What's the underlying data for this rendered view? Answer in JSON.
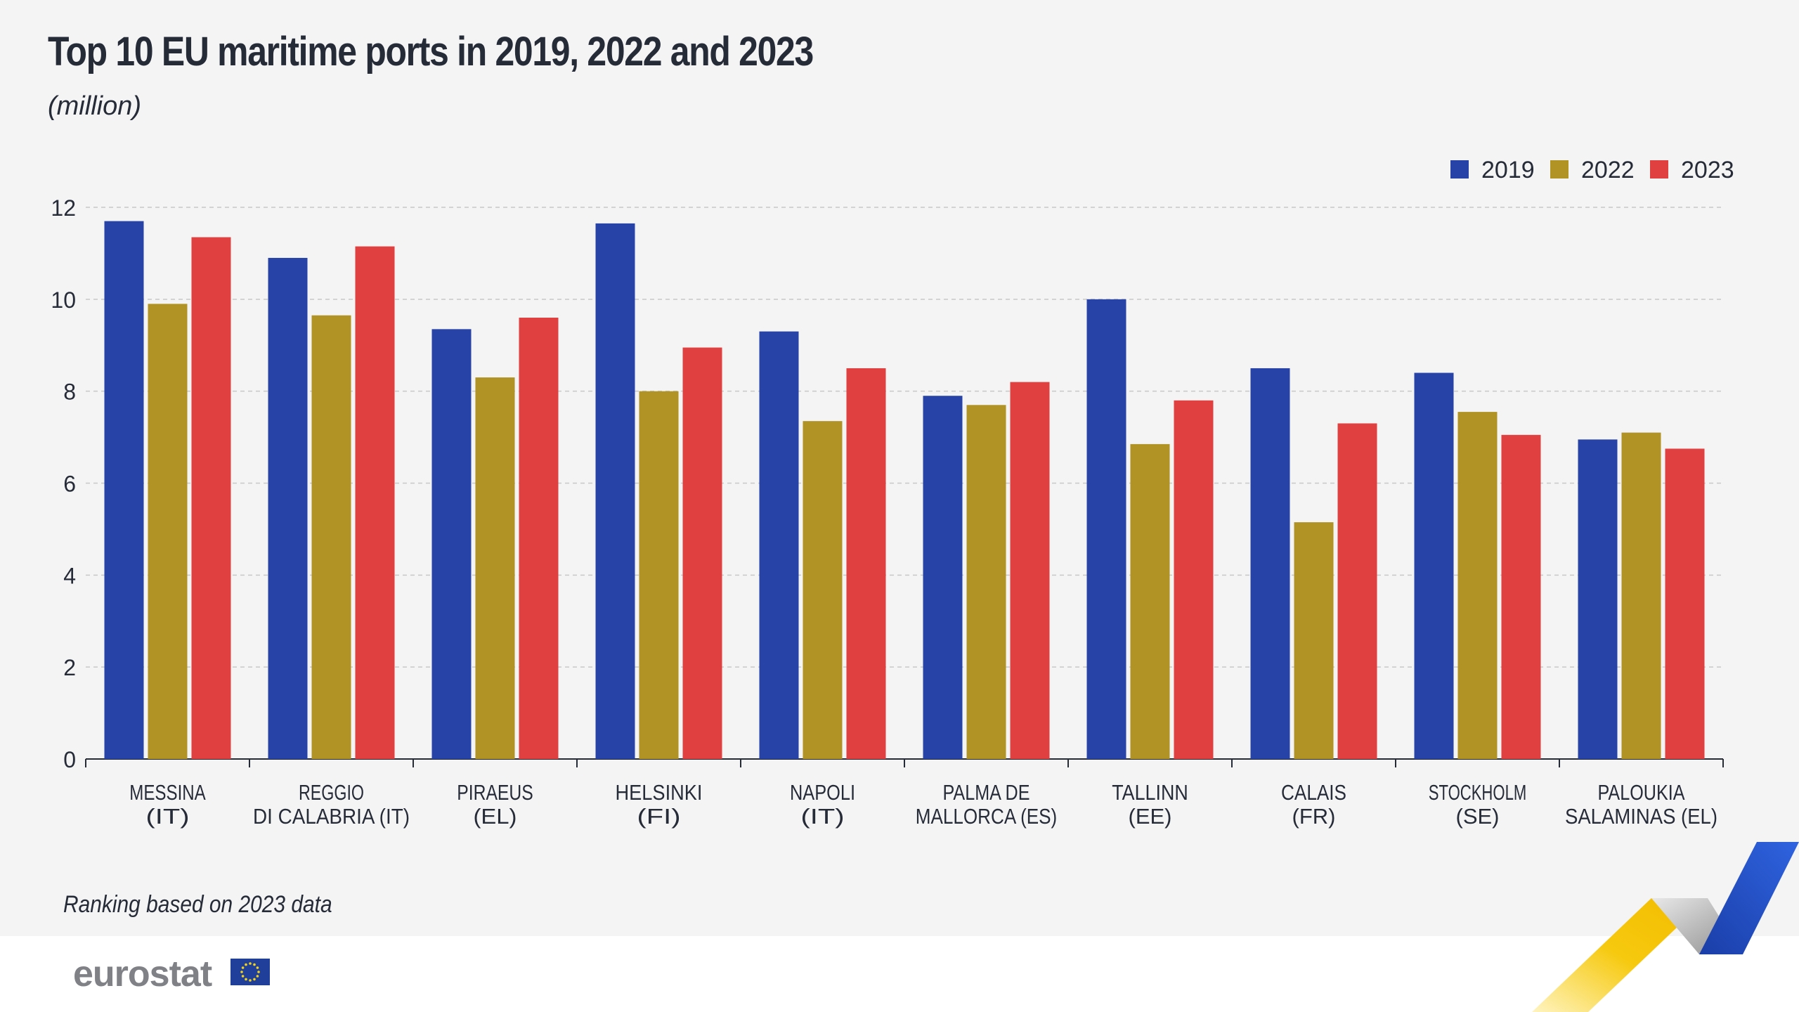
{
  "header": {
    "title": "Top 10 EU maritime ports in 2019, 2022 and 2023",
    "subtitle": "(million)"
  },
  "footnote": "Ranking based on 2023 data",
  "logo": {
    "text": "eurostat",
    "flag_icon": "eu-flag-icon"
  },
  "colors": {
    "2019": "#2743a8",
    "2022": "#b09225",
    "2023": "#e04040",
    "background": "#f4f4f4",
    "text": "#262b38"
  },
  "chart_data": {
    "type": "bar",
    "title": "Top 10 EU maritime ports in 2019, 2022 and 2023",
    "subtitle": "(million)",
    "xlabel": "",
    "ylabel": "",
    "ylim": [
      0,
      12
    ],
    "yticks": [
      0,
      2,
      4,
      6,
      8,
      10,
      12
    ],
    "grid": true,
    "legend_position": "top-right",
    "categories": [
      [
        "MESSINA",
        "(IT)"
      ],
      [
        "REGGIO",
        "DI CALABRIA (IT)"
      ],
      [
        "PIRAEUS",
        "(EL)"
      ],
      [
        "HELSINKI",
        "(FI)"
      ],
      [
        "NAPOLI",
        "(IT)"
      ],
      [
        "PALMA DE",
        "MALLORCA (ES)"
      ],
      [
        "TALLINN",
        "(EE)"
      ],
      [
        "CALAIS",
        "(FR)"
      ],
      [
        "STOCKHOLM",
        "(SE)"
      ],
      [
        "PALOUKIA",
        "SALAMINAS (EL)"
      ]
    ],
    "series": [
      {
        "name": "2019",
        "color": "#2743a8",
        "values": [
          11.7,
          10.9,
          9.35,
          11.65,
          9.3,
          7.9,
          10.0,
          8.5,
          8.4,
          6.95
        ]
      },
      {
        "name": "2022",
        "color": "#b09225",
        "values": [
          9.9,
          9.65,
          8.3,
          8.0,
          7.35,
          7.7,
          6.85,
          5.15,
          7.55,
          7.1
        ]
      },
      {
        "name": "2023",
        "color": "#e04040",
        "values": [
          11.35,
          11.15,
          9.6,
          8.95,
          8.5,
          8.2,
          7.8,
          7.3,
          7.05,
          6.75
        ]
      }
    ]
  }
}
